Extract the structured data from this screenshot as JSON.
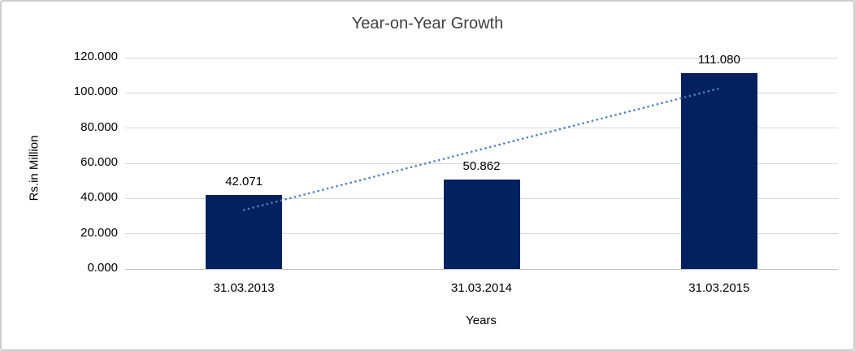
{
  "chart_data": {
    "type": "bar",
    "title": "Year-on-Year Growth",
    "categories": [
      "31.03.2013",
      "31.03.2014",
      "31.03.2015"
    ],
    "values": [
      42.071,
      50.862,
      111.08
    ],
    "data_labels": [
      "42.071",
      "50.862",
      "111.080"
    ],
    "xlabel": "Years",
    "ylabel": "Rs.in Million",
    "ylim": [
      0,
      120
    ],
    "ytick_step": 20,
    "ytick_labels": [
      "0.000",
      "20.000",
      "40.000",
      "60.000",
      "80.000",
      "100.000",
      "120.000"
    ],
    "grid": true,
    "legend": "none",
    "trendline": {
      "type": "linear",
      "style": "dotted"
    },
    "colors": {
      "bar": "#03215f",
      "trendline": "#4f81bd",
      "gridline": "#d9d9d9",
      "axis_line": "#bfbfbf",
      "label_text": "#000000",
      "title_text": "#3f3f3f",
      "frame_border": "#cdcdcd",
      "background": "#ffffff"
    }
  }
}
